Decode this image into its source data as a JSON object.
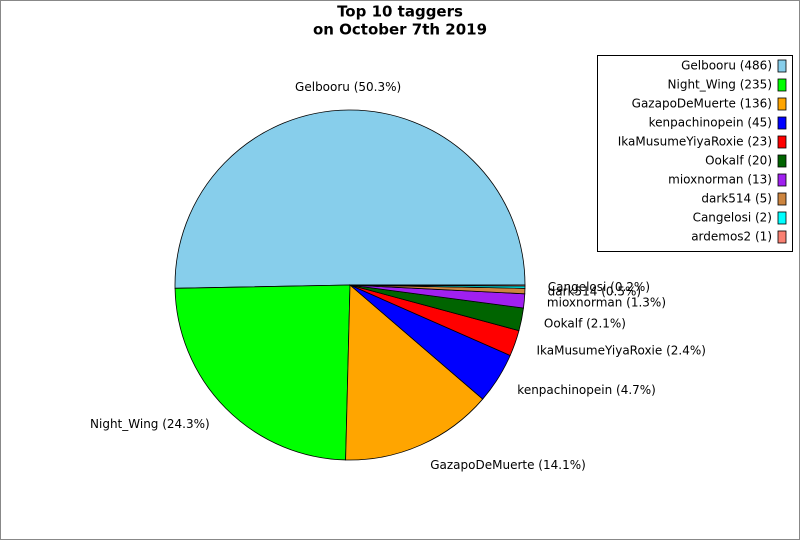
{
  "chart_data": {
    "type": "pie",
    "title": [
      "Top 10 taggers",
      "on October 7th 2019"
    ],
    "categories": [
      "Gelbooru (486)",
      "Night_Wing (235)",
      "GazapoDeMuerte (136)",
      "kenpachinopein (45)",
      "IkaMusumeYiyaRoxie (23)",
      "Ookalf (20)",
      "mioxnorman (13)",
      "dark514 (5)",
      "Cangelosi (2)",
      "ardemos2 (1)"
    ],
    "values": [
      50.3,
      24.3,
      14.1,
      4.7,
      2.4,
      2.1,
      1.3,
      0.5,
      0.2,
      0.1
    ],
    "value_labels": [
      "Gelbooru (50.3%)",
      "Night_Wing (24.3%)",
      "GazapoDeMuerte (14.1%)",
      "kenpachinopein (4.7%)",
      "IkaMusumeYiyaRoxie (2.4%)",
      "Ookalf (2.1%)",
      "mioxnorman (1.3%)",
      "dark514 (0.5%)",
      "Cangelosi (0.2%)",
      null
    ],
    "colors": [
      "#87ceeb",
      "#00ff00",
      "#ffa500",
      "#0000ff",
      "#ff0000",
      "#006400",
      "#a020f0",
      "#cd853f",
      "#00ffff",
      "#fa8072"
    ],
    "legend": "upper right"
  }
}
